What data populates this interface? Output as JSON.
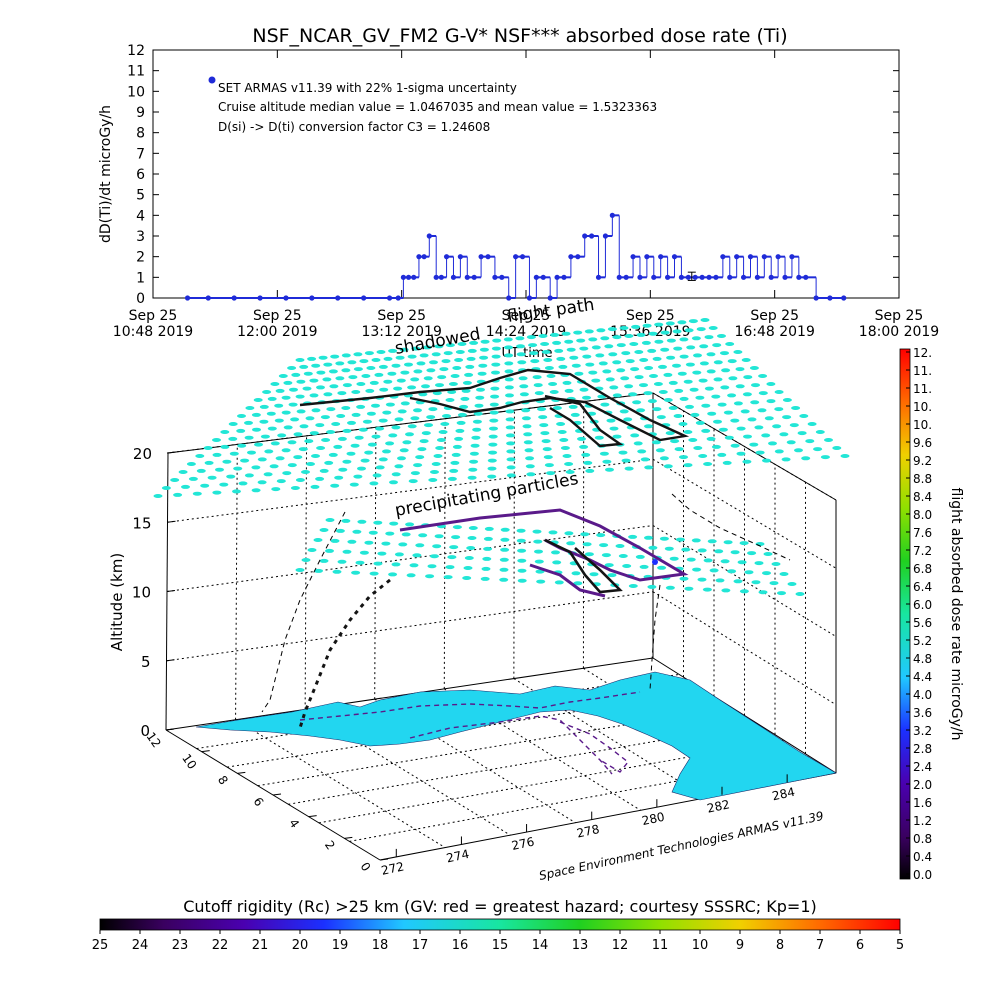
{
  "colors": {
    "dose_series": "#1f2bd8",
    "grid_dots": "#22e6d6",
    "land": "#22d6f0",
    "track_dark": "#141414",
    "track_purple": "#5a1a8a"
  },
  "chart_data": [
    {
      "type": "scatter",
      "title": "NSF_NCAR_GV_FM2 G-V* NSF*** absorbed dose rate (Ti)",
      "ylabel": "dD(Ti)/dt microGy/h",
      "xlabel": "UT time",
      "ylim": [
        0,
        12
      ],
      "yticks": [
        "0",
        "1",
        "2",
        "3",
        "4",
        "5",
        "6",
        "7",
        "8",
        "9",
        "10",
        "11",
        "12"
      ],
      "xticks": [
        {
          "line1": "Sep 25",
          "line2": "10:48 2019"
        },
        {
          "line1": "Sep 25",
          "line2": "12:00 2019"
        },
        {
          "line1": "Sep 25",
          "line2": "13:12 2019"
        },
        {
          "line1": "Sep 25",
          "line2": "14:24 2019"
        },
        {
          "line1": "Sep 25",
          "line2": "15:36 2019"
        },
        {
          "line1": "Sep 25",
          "line2": "16:48 2019"
        },
        {
          "line1": "Sep 25",
          "line2": "18:00 2019"
        }
      ],
      "legend": "SET ARMAS v11.39 with 22% 1-sigma uncertainty",
      "annotations": [
        "Cruise altitude median value = 1.0467035 and mean value = 1.5323363",
        "D(si) -> D(ti) conversion factor C3 = 1.24608"
      ],
      "series": [
        {
          "x": [
            "11:08",
            "11:20",
            "11:35",
            "11:50",
            "12:05",
            "12:20",
            "12:35",
            "12:50",
            "13:05",
            "13:10",
            "13:13",
            "13:16",
            "13:19",
            "13:22",
            "13:25",
            "13:28",
            "13:32",
            "13:35",
            "13:38",
            "13:42",
            "13:46",
            "13:50",
            "13:54",
            "13:58",
            "14:02",
            "14:06",
            "14:10",
            "14:14",
            "14:18",
            "14:22",
            "14:26",
            "14:30",
            "14:34",
            "14:38",
            "14:42",
            "14:46",
            "14:50",
            "14:54",
            "14:58",
            "15:02",
            "15:06",
            "15:10",
            "15:14",
            "15:18",
            "15:22",
            "15:26",
            "15:30",
            "15:34",
            "15:38",
            "15:42",
            "15:46",
            "15:50",
            "15:54",
            "15:58",
            "16:02",
            "16:06",
            "16:10",
            "16:14",
            "16:18",
            "16:22",
            "16:26",
            "16:30",
            "16:34",
            "16:38",
            "16:42",
            "16:46",
            "16:50",
            "16:54",
            "16:58",
            "17:02",
            "17:06",
            "17:12",
            "17:20",
            "17:28"
          ],
          "values": [
            0,
            0,
            0,
            0,
            0,
            0,
            0,
            0,
            0,
            0,
            1,
            1,
            1,
            2,
            2,
            3,
            1,
            1,
            2,
            1,
            2,
            1,
            1,
            2,
            2,
            1,
            1,
            0,
            2,
            2,
            0,
            1,
            1,
            0,
            1,
            1,
            2,
            2,
            3,
            3,
            1,
            3,
            4,
            1,
            1,
            2,
            1,
            2,
            1,
            2,
            1,
            2,
            1,
            1,
            1,
            1,
            1,
            1,
            2,
            1,
            2,
            1,
            2,
            1,
            2,
            1,
            2,
            1,
            2,
            1,
            1,
            0,
            0,
            0
          ],
          "error_bar": {
            "x": "16:00",
            "value": 1.05,
            "low": 0.85,
            "high": 1.25
          }
        }
      ]
    },
    {
      "type": "scatter3d",
      "zlabel": "Altitude (km)",
      "zlim": [
        0,
        20
      ],
      "zticks": [
        "0",
        "5",
        "10",
        "15",
        "20"
      ],
      "lon_ticks": [
        "272",
        "274",
        "276",
        "278",
        "280",
        "282",
        "284"
      ],
      "lat_ticks": [
        "0",
        "2",
        "4",
        "6",
        "8",
        "10",
        "12"
      ],
      "labels": {
        "shadowed": "shadowed",
        "flight_path": "flight path",
        "precipitating": "precipitating particles",
        "credit": "Space Environment Technologies ARMAS v11.39"
      }
    }
  ],
  "colorbar_right": {
    "label": "flight absorbed dose rate microGy/h",
    "ticks": [
      "12.",
      "11.",
      "11.",
      "10.",
      "10.",
      "9.6",
      "9.2",
      "8.8",
      "8.4",
      "8.0",
      "7.6",
      "7.2",
      "6.8",
      "6.4",
      "6.0",
      "5.6",
      "5.2",
      "4.8",
      "4.4",
      "4.0",
      "3.6",
      "3.2",
      "2.8",
      "2.4",
      "2.0",
      "1.6",
      "1.2",
      "0.8",
      "0.4",
      "0.0"
    ]
  },
  "colorbar_bottom": {
    "label": "Cutoff rigidity (Rc) >25 km (GV: red = greatest hazard; courtesy SSSRC; Kp=1)",
    "ticks": [
      "25",
      "24",
      "23",
      "22",
      "21",
      "20",
      "19",
      "18",
      "17",
      "16",
      "15",
      "14",
      "13",
      "12",
      "11",
      "10",
      "9",
      "8",
      "7",
      "6",
      "5"
    ]
  }
}
